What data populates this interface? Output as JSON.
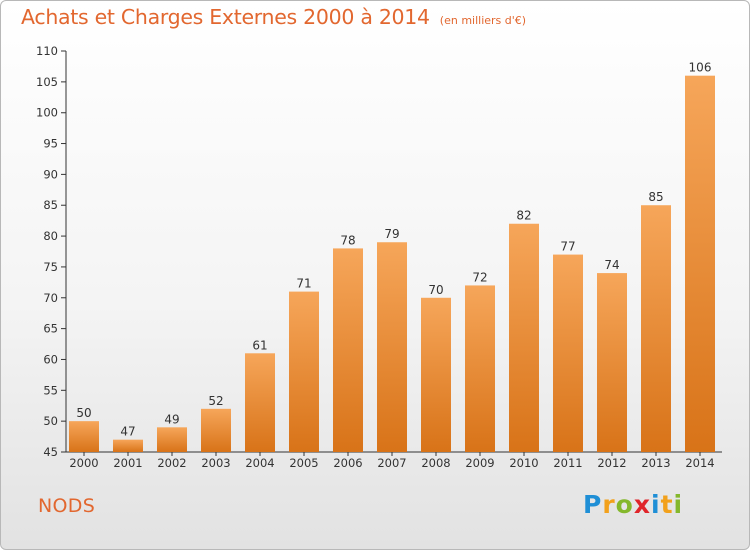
{
  "title": {
    "main": "Achats et Charges Externes 2000 à 2014",
    "sub": "(en milliers d'€)"
  },
  "commune": "NODS",
  "logo": {
    "text": "Proxiti",
    "letters": [
      {
        "char": "P",
        "color": "#1f8fd6"
      },
      {
        "char": "r",
        "color": "#f2a11c"
      },
      {
        "char": "o",
        "color": "#84b82c"
      },
      {
        "char": "x",
        "color": "#e0252a"
      },
      {
        "char": "i",
        "color": "#1f8fd6"
      },
      {
        "char": "t",
        "color": "#f2a11c"
      },
      {
        "char": "i",
        "color": "#84b82c"
      }
    ]
  },
  "chart_data": {
    "type": "bar",
    "title": "Achats et Charges Externes 2000 à 2014",
    "subtitle": "(en milliers d'€)",
    "xlabel": "",
    "ylabel": "",
    "categories": [
      "2000",
      "2001",
      "2002",
      "2003",
      "2004",
      "2005",
      "2006",
      "2007",
      "2008",
      "2009",
      "2010",
      "2011",
      "2012",
      "2013",
      "2014"
    ],
    "values": [
      50,
      47,
      49,
      52,
      61,
      71,
      78,
      79,
      70,
      72,
      82,
      77,
      74,
      85,
      106
    ],
    "ylim": [
      45,
      110
    ],
    "yticks": [
      45,
      50,
      55,
      60,
      65,
      70,
      75,
      80,
      85,
      90,
      95,
      100,
      105,
      110
    ],
    "grid": false,
    "bar_color_top": "#f6a65a",
    "bar_color_bottom": "#d87318"
  }
}
